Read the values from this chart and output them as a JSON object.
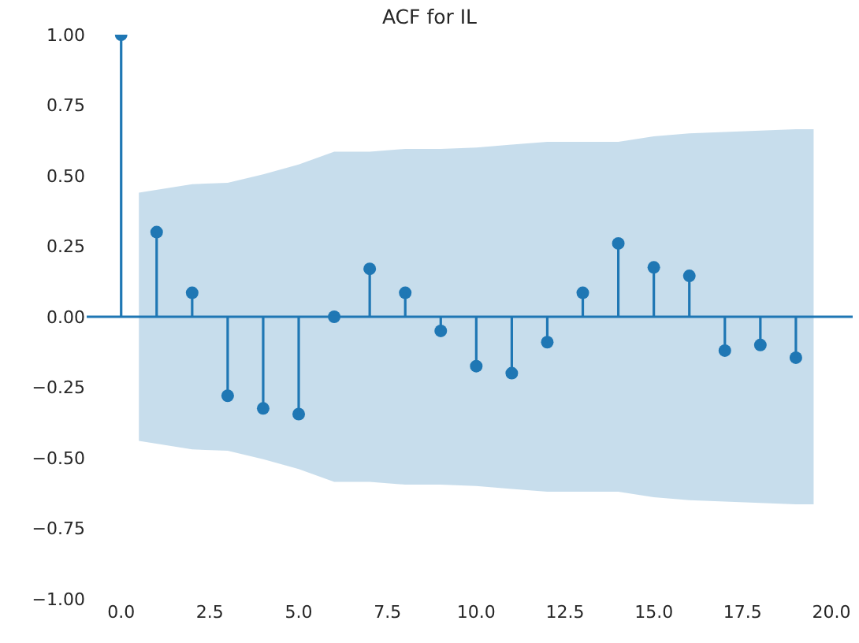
{
  "chart_data": {
    "type": "lollipop",
    "title": "ACF for IL",
    "x": [
      0,
      1,
      2,
      3,
      4,
      5,
      6,
      7,
      8,
      9,
      10,
      11,
      12,
      13,
      14,
      15,
      16,
      17,
      18,
      19
    ],
    "series": [
      {
        "color": "#1f77b4",
        "values": [
          1.0,
          0.3,
          0.085,
          -0.28,
          -0.325,
          -0.345,
          0.0,
          0.17,
          0.085,
          -0.05,
          -0.175,
          -0.2,
          -0.09,
          0.085,
          0.26,
          0.175,
          0.145,
          -0.12,
          -0.1,
          -0.145
        ]
      },
      {
        "type": "area",
        "color": "#1f77b4",
        "x": [
          0.5,
          2,
          3,
          4,
          5,
          6,
          7,
          8,
          9,
          10,
          11,
          12,
          13,
          14,
          15,
          16,
          17,
          18,
          19,
          19.5
        ],
        "values": [
          null,
          null,
          null,
          null,
          null,
          null,
          null,
          null,
          null,
          null,
          null,
          null,
          null,
          null,
          null,
          null,
          null,
          null,
          null,
          null
        ],
        "lower": [
          -0.44,
          -0.47,
          -0.475,
          -0.505,
          -0.54,
          -0.585,
          -0.585,
          -0.595,
          -0.595,
          -0.6,
          -0.61,
          -0.62,
          -0.62,
          -0.62,
          -0.64,
          -0.65,
          -0.655,
          -0.66,
          -0.665,
          -0.665
        ],
        "upper": [
          0.44,
          0.47,
          0.475,
          0.505,
          0.54,
          0.585,
          0.585,
          0.595,
          0.595,
          0.6,
          0.61,
          0.62,
          0.62,
          0.62,
          0.64,
          0.65,
          0.655,
          0.66,
          0.665,
          0.665
        ]
      }
    ],
    "ref_lines": [
      {
        "axis": "y",
        "value": 0,
        "color": "#1f77b4"
      }
    ],
    "marker": "circle",
    "xlim": [
      -0.97,
      20.6
    ],
    "ylim": [
      -1.0,
      1.0
    ],
    "xticks": [
      {
        "value": 0,
        "label": "0.0"
      },
      {
        "value": 2.5,
        "label": "2.5"
      },
      {
        "value": 5,
        "label": "5.0"
      },
      {
        "value": 7.5,
        "label": "7.5"
      },
      {
        "value": 10,
        "label": "10.0"
      },
      {
        "value": 12.5,
        "label": "12.5"
      },
      {
        "value": 15,
        "label": "15.0"
      },
      {
        "value": 17.5,
        "label": "17.5"
      },
      {
        "value": 20,
        "label": "20.0"
      }
    ],
    "yticks": [
      {
        "value": -1,
        "label": "−1.00"
      },
      {
        "value": -0.75,
        "label": "−0.75"
      },
      {
        "value": -0.5,
        "label": "−0.50"
      },
      {
        "value": -0.25,
        "label": "−0.25"
      },
      {
        "value": 0,
        "label": "0.00"
      },
      {
        "value": 0.25,
        "label": "0.25"
      },
      {
        "value": 0.5,
        "label": "0.50"
      },
      {
        "value": 0.75,
        "label": "0.75"
      },
      {
        "value": 1,
        "label": "1.00"
      }
    ],
    "grid": false
  }
}
